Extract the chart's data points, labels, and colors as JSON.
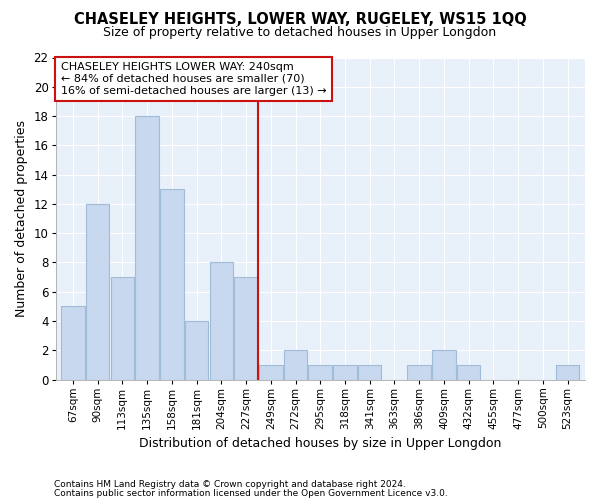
{
  "title": "CHASELEY HEIGHTS, LOWER WAY, RUGELEY, WS15 1QQ",
  "subtitle": "Size of property relative to detached houses in Upper Longdon",
  "xlabel": "Distribution of detached houses by size in Upper Longdon",
  "ylabel": "Number of detached properties",
  "footer1": "Contains HM Land Registry data © Crown copyright and database right 2024.",
  "footer2": "Contains public sector information licensed under the Open Government Licence v3.0.",
  "annotation_line1": "CHASELEY HEIGHTS LOWER WAY: 240sqm",
  "annotation_line2": "← 84% of detached houses are smaller (70)",
  "annotation_line3": "16% of semi-detached houses are larger (13) →",
  "bar_color": "#c8d8ee",
  "bar_edge_color": "#a0bcd8",
  "vline_color": "#cc1111",
  "vline_index": 8,
  "categories": [
    "67sqm",
    "90sqm",
    "113sqm",
    "135sqm",
    "158sqm",
    "181sqm",
    "204sqm",
    "227sqm",
    "249sqm",
    "272sqm",
    "295sqm",
    "318sqm",
    "341sqm",
    "363sqm",
    "386sqm",
    "409sqm",
    "432sqm",
    "455sqm",
    "477sqm",
    "500sqm",
    "523sqm"
  ],
  "values": [
    5,
    12,
    7,
    18,
    13,
    4,
    8,
    7,
    1,
    2,
    1,
    1,
    1,
    0,
    1,
    2,
    1,
    0,
    0,
    0,
    1
  ],
  "ylim": [
    0,
    22
  ],
  "yticks": [
    0,
    2,
    4,
    6,
    8,
    10,
    12,
    14,
    16,
    18,
    20,
    22
  ],
  "fig_bg_color": "#ffffff",
  "plot_bg_color": "#e8f0fa",
  "grid_color": "#ffffff",
  "annotation_box_facecolor": "#ffffff",
  "annotation_box_edgecolor": "#cc1111"
}
